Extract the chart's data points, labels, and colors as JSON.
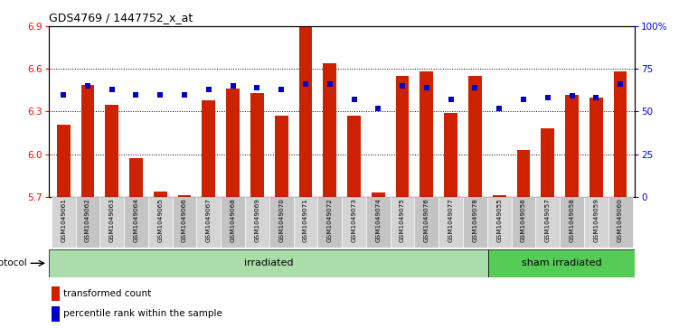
{
  "title": "GDS4769 / 1447752_x_at",
  "samples": [
    "GSM1049061",
    "GSM1049062",
    "GSM1049063",
    "GSM1049064",
    "GSM1049065",
    "GSM1049066",
    "GSM1049067",
    "GSM1049068",
    "GSM1049069",
    "GSM1049070",
    "GSM1049071",
    "GSM1049072",
    "GSM1049073",
    "GSM1049074",
    "GSM1049075",
    "GSM1049076",
    "GSM1049077",
    "GSM1049078",
    "GSM1049055",
    "GSM1049056",
    "GSM1049057",
    "GSM1049058",
    "GSM1049059",
    "GSM1049060"
  ],
  "transformed_count": [
    6.21,
    6.49,
    6.35,
    5.97,
    5.74,
    5.71,
    6.38,
    6.46,
    6.43,
    6.27,
    6.9,
    6.64,
    6.27,
    5.73,
    6.55,
    6.58,
    6.29,
    6.55,
    5.71,
    6.03,
    6.18,
    6.42,
    6.4,
    6.58
  ],
  "percentile_rank": [
    60,
    65,
    63,
    60,
    60,
    60,
    63,
    65,
    64,
    63,
    66,
    66,
    57,
    52,
    65,
    64,
    57,
    64,
    52,
    57,
    58,
    59,
    58,
    66
  ],
  "ylim_left": [
    5.7,
    6.9
  ],
  "yticks_left": [
    5.7,
    6.0,
    6.3,
    6.6,
    6.9
  ],
  "ylim_right": [
    0,
    100
  ],
  "yticks_right": [
    0,
    25,
    50,
    75,
    100
  ],
  "ytick_labels_right": [
    "0",
    "25",
    "50",
    "75",
    "100%"
  ],
  "bar_color": "#cc2200",
  "dot_color": "#0000cc",
  "irradiated_count": 18,
  "sham_irradiated_count": 6,
  "group_irradiated_label": "irradiated",
  "group_sham_label": "sham irradiated",
  "protocol_label": "protocol",
  "legend_bar_label": "transformed count",
  "legend_dot_label": "percentile rank within the sample",
  "bg_group_irr": "#aaddaa",
  "bg_group_sham": "#55cc55",
  "bar_bottom": 5.7,
  "bar_width": 0.55
}
